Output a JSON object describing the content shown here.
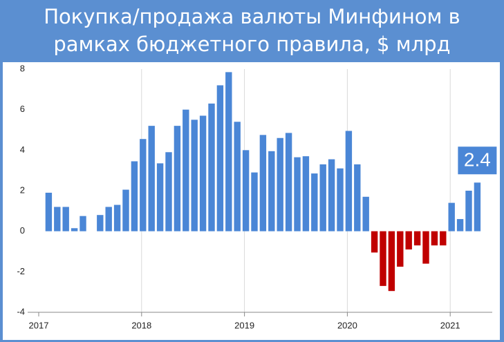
{
  "chart_data": {
    "type": "bar",
    "title": "Покупка/продажа валюты Минфином в рамках бюджетного правила, $ млрд",
    "categories": [
      "2017",
      null,
      null,
      null,
      null,
      null,
      null,
      null,
      null,
      null,
      null,
      null,
      "2018",
      null,
      null,
      null,
      null,
      null,
      null,
      null,
      null,
      null,
      null,
      null,
      "2019",
      null,
      null,
      null,
      null,
      null,
      null,
      null,
      null,
      null,
      null,
      null,
      "2020",
      null,
      null,
      null,
      null,
      null,
      null,
      null,
      null,
      null,
      null,
      null,
      "2021",
      null,
      null,
      null
    ],
    "values": [
      null,
      1.9,
      1.2,
      1.2,
      0.15,
      0.75,
      null,
      0.8,
      1.2,
      1.3,
      2.05,
      3.45,
      4.55,
      5.2,
      3.35,
      3.9,
      5.2,
      6.0,
      5.5,
      5.7,
      6.3,
      7.2,
      7.85,
      5.4,
      4.0,
      2.9,
      4.75,
      3.95,
      4.6,
      4.85,
      3.65,
      3.7,
      2.85,
      3.3,
      3.55,
      3.1,
      4.95,
      3.3,
      1.7,
      -1.05,
      -2.7,
      -2.95,
      -1.75,
      -0.9,
      -0.7,
      -1.6,
      -0.7,
      -0.7,
      1.4,
      0.6,
      2.0,
      2.4
    ],
    "value_labels": [
      null,
      null,
      null,
      null,
      null,
      null,
      null,
      null,
      null,
      null,
      null,
      null,
      null,
      null,
      null,
      null,
      null,
      null,
      null,
      null,
      null,
      null,
      null,
      null,
      null,
      null,
      null,
      null,
      null,
      null,
      null,
      null,
      null,
      null,
      null,
      null,
      null,
      null,
      null,
      null,
      null,
      null,
      null,
      null,
      null,
      null,
      null,
      null,
      null,
      null,
      null,
      "2.4"
    ],
    "color": "#4a86d6",
    "negative_color": "#c00000",
    "ylim": [
      -4,
      8
    ],
    "yticks": [
      -4,
      -2,
      0,
      2,
      4,
      6,
      8
    ],
    "grid": true
  }
}
